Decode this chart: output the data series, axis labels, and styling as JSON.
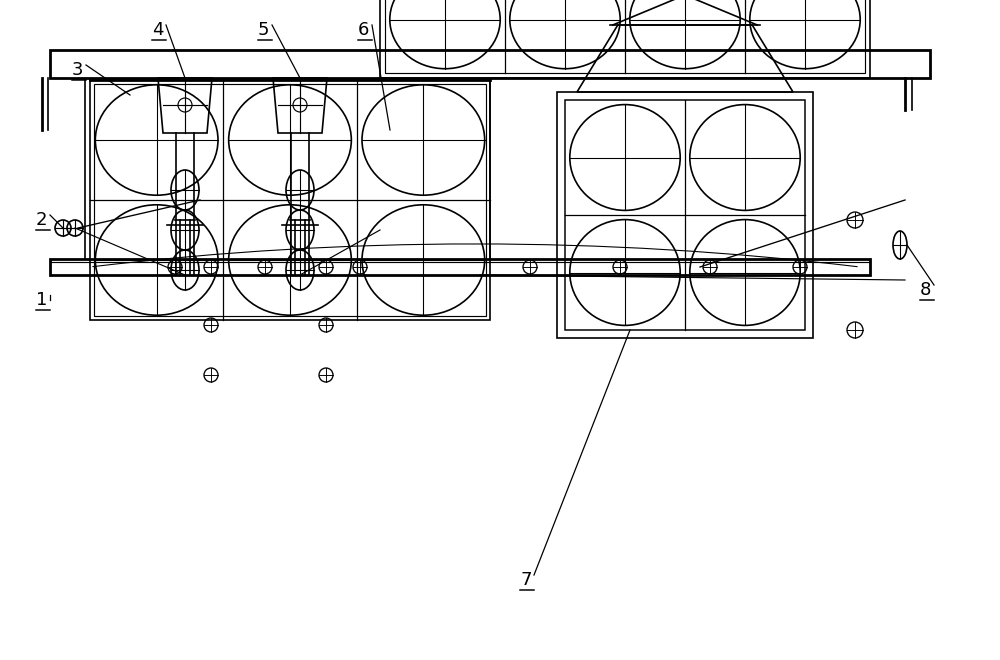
{
  "bg_color": "#ffffff",
  "line_color": "#000000",
  "label_color": "#000000",
  "fig_width": 10.0,
  "fig_height": 6.6,
  "lw": 1.2,
  "lw2": 2.0
}
